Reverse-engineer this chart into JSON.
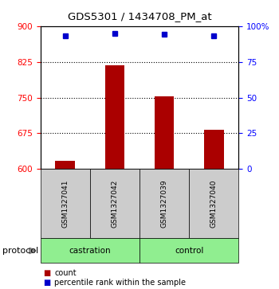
{
  "title": "GDS5301 / 1434708_PM_at",
  "samples": [
    "GSM1327041",
    "GSM1327042",
    "GSM1327039",
    "GSM1327040"
  ],
  "count_values": [
    618,
    818,
    752,
    683
  ],
  "percentile_values": [
    93,
    95,
    94,
    93
  ],
  "groups": [
    "castration",
    "castration",
    "control",
    "control"
  ],
  "group_labels": [
    "castration",
    "control"
  ],
  "bar_color": "#AA0000",
  "dot_color": "#0000CC",
  "left_ylim": [
    600,
    900
  ],
  "right_ylim": [
    0,
    100
  ],
  "left_yticks": [
    600,
    675,
    750,
    825,
    900
  ],
  "right_yticks": [
    0,
    25,
    50,
    75,
    100
  ],
  "right_yticklabels": [
    "0",
    "25",
    "50",
    "75",
    "100%"
  ],
  "grid_values": [
    675,
    750,
    825
  ],
  "sample_box_color": "#CCCCCC",
  "group_box_color": "#90EE90",
  "legend_count_label": "count",
  "legend_pct_label": "percentile rank within the sample",
  "protocol_label": "protocol"
}
